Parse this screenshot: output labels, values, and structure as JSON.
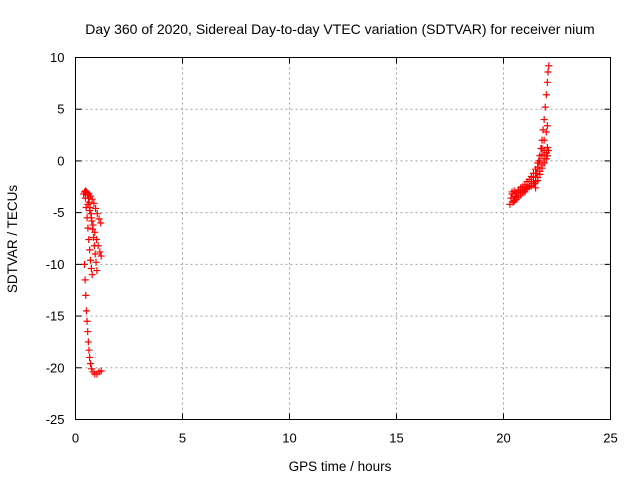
{
  "chart_data": {
    "type": "scatter",
    "title": "Day 360 of 2020, Sidereal Day-to-day VTEC variation (SDTVAR) for receiver nium",
    "xlabel": "GPS time / hours",
    "ylabel": "SDTVAR / TECUs",
    "xlim": [
      0,
      25
    ],
    "ylim": [
      -25,
      10
    ],
    "xticks": [
      0,
      5,
      10,
      15,
      20,
      25
    ],
    "yticks": [
      -25,
      -20,
      -15,
      -10,
      -5,
      0,
      5,
      10
    ],
    "grid": true,
    "marker": "+",
    "color": "#ff0000",
    "series": [
      {
        "name": "SDTVAR",
        "points": [
          [
            0.38,
            -3.2
          ],
          [
            0.42,
            -3.0
          ],
          [
            0.47,
            -2.9
          ],
          [
            0.52,
            -3.0
          ],
          [
            0.56,
            -3.3
          ],
          [
            0.6,
            -3.6
          ],
          [
            0.64,
            -4.0
          ],
          [
            0.68,
            -4.5
          ],
          [
            0.72,
            -5.1
          ],
          [
            0.76,
            -5.8
          ],
          [
            0.8,
            -6.6
          ],
          [
            0.84,
            -7.4
          ],
          [
            0.88,
            -8.2
          ],
          [
            0.92,
            -9.0
          ],
          [
            0.96,
            -9.8
          ],
          [
            1.0,
            -10.6
          ],
          [
            0.5,
            -3.0
          ],
          [
            0.55,
            -3.1
          ],
          [
            0.62,
            -3.2
          ],
          [
            0.7,
            -3.4
          ],
          [
            0.78,
            -3.7
          ],
          [
            0.86,
            -4.1
          ],
          [
            0.94,
            -4.6
          ],
          [
            1.02,
            -5.1
          ],
          [
            1.1,
            -5.6
          ],
          [
            1.18,
            -6.0
          ],
          [
            0.58,
            -4.2
          ],
          [
            0.66,
            -4.8
          ],
          [
            0.74,
            -5.5
          ],
          [
            0.82,
            -6.2
          ],
          [
            0.9,
            -6.9
          ],
          [
            0.98,
            -7.6
          ],
          [
            1.06,
            -8.2
          ],
          [
            1.14,
            -8.8
          ],
          [
            1.2,
            -9.2
          ],
          [
            0.46,
            -3.6
          ],
          [
            0.5,
            -4.5
          ],
          [
            0.54,
            -5.5
          ],
          [
            0.58,
            -6.5
          ],
          [
            0.62,
            -7.6
          ],
          [
            0.66,
            -8.6
          ],
          [
            0.7,
            -9.6
          ],
          [
            0.74,
            -10.4
          ],
          [
            0.78,
            -11.0
          ],
          [
            0.42,
            -10.0
          ],
          [
            0.45,
            -11.5
          ],
          [
            0.48,
            -13.0
          ],
          [
            0.51,
            -14.5
          ],
          [
            0.54,
            -15.5
          ],
          [
            0.57,
            -16.5
          ],
          [
            0.6,
            -17.5
          ],
          [
            0.63,
            -18.3
          ],
          [
            0.66,
            -19.0
          ],
          [
            0.7,
            -19.6
          ],
          [
            0.75,
            -20.1
          ],
          [
            0.82,
            -20.4
          ],
          [
            0.9,
            -20.6
          ],
          [
            1.0,
            -20.6
          ],
          [
            1.1,
            -20.4
          ],
          [
            1.2,
            -20.3
          ],
          [
            20.3,
            -4.2
          ],
          [
            20.35,
            -3.6
          ],
          [
            20.4,
            -3.2
          ],
          [
            20.45,
            -4.0
          ],
          [
            20.5,
            -3.8
          ],
          [
            20.55,
            -3.4
          ],
          [
            20.6,
            -3.5
          ],
          [
            20.7,
            -3.3
          ],
          [
            20.8,
            -3.0
          ],
          [
            20.9,
            -2.9
          ],
          [
            21.0,
            -2.8
          ],
          [
            21.1,
            -2.6
          ],
          [
            21.2,
            -2.5
          ],
          [
            21.3,
            -2.4
          ],
          [
            21.4,
            -2.2
          ],
          [
            21.5,
            -2.0
          ],
          [
            21.6,
            -1.6
          ],
          [
            21.7,
            -1.0
          ],
          [
            21.8,
            -0.4
          ],
          [
            21.9,
            0.2
          ],
          [
            22.0,
            0.8
          ],
          [
            22.05,
            1.3
          ],
          [
            20.4,
            -3.0
          ],
          [
            20.5,
            -2.9
          ],
          [
            20.6,
            -3.1
          ],
          [
            20.7,
            -2.8
          ],
          [
            20.8,
            -2.6
          ],
          [
            20.9,
            -2.5
          ],
          [
            21.0,
            -2.3
          ],
          [
            21.1,
            -2.0
          ],
          [
            21.2,
            -1.8
          ],
          [
            21.3,
            -1.5
          ],
          [
            21.4,
            -1.2
          ],
          [
            21.5,
            -0.8
          ],
          [
            21.6,
            -0.2
          ],
          [
            21.7,
            0.5
          ],
          [
            21.8,
            1.2
          ],
          [
            21.9,
            2.0
          ],
          [
            22.0,
            2.8
          ],
          [
            22.05,
            3.4
          ],
          [
            20.5,
            -3.9
          ],
          [
            20.6,
            -3.7
          ],
          [
            20.7,
            -3.5
          ],
          [
            20.8,
            -3.3
          ],
          [
            20.9,
            -3.1
          ],
          [
            21.0,
            -3.0
          ],
          [
            21.1,
            -2.7
          ],
          [
            21.2,
            -2.4
          ],
          [
            21.3,
            -2.0
          ],
          [
            21.4,
            -1.6
          ],
          [
            21.5,
            -1.2
          ],
          [
            21.6,
            -0.6
          ],
          [
            21.7,
            0.0
          ],
          [
            21.8,
            0.6
          ],
          [
            21.9,
            1.0
          ],
          [
            21.45,
            -2.2
          ],
          [
            21.55,
            -1.2
          ],
          [
            21.65,
            0.0
          ],
          [
            21.75,
            1.2
          ],
          [
            21.8,
            2.0
          ],
          [
            21.85,
            3.0
          ],
          [
            21.9,
            4.0
          ],
          [
            21.95,
            5.2
          ],
          [
            22.0,
            6.4
          ],
          [
            22.05,
            7.6
          ],
          [
            22.08,
            8.6
          ],
          [
            22.12,
            9.2
          ],
          [
            21.5,
            -2.6
          ],
          [
            21.6,
            -1.9
          ],
          [
            21.7,
            -1.3
          ],
          [
            21.8,
            -0.7
          ],
          [
            21.9,
            -0.2
          ],
          [
            22.0,
            0.2
          ],
          [
            22.05,
            0.5
          ],
          [
            22.1,
            1.0
          ]
        ]
      }
    ]
  }
}
